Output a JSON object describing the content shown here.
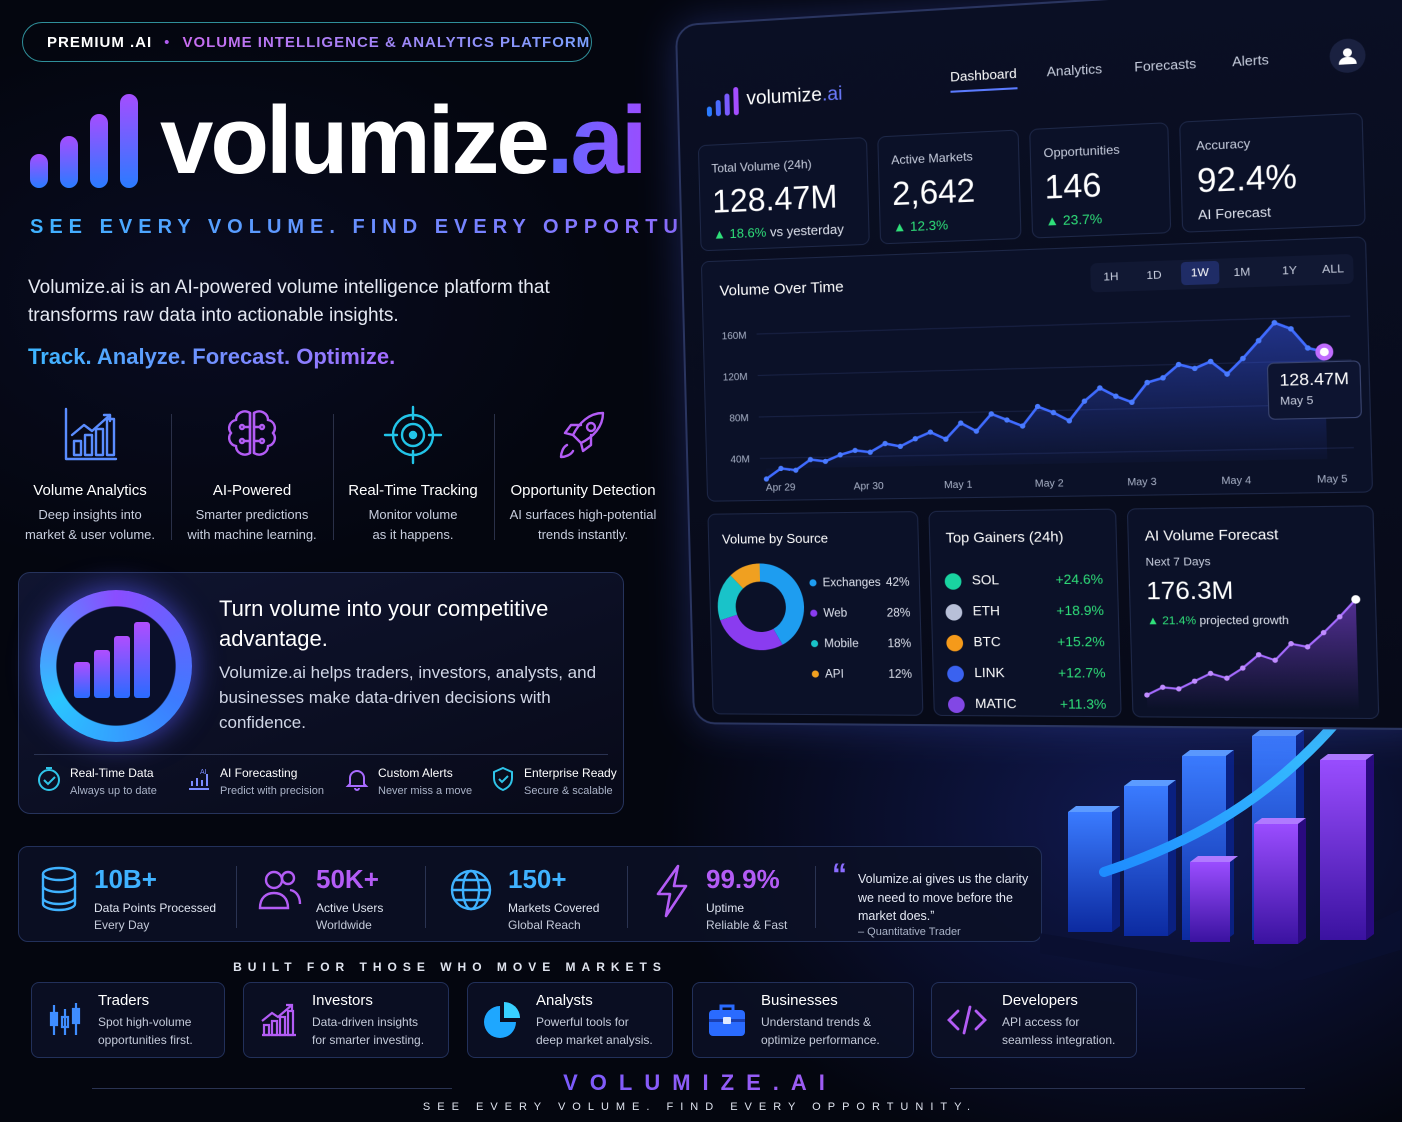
{
  "badge": {
    "left": "PREMIUM .AI",
    "sep": "•",
    "right": "VOLUME INTELLIGENCE & ANALYTICS PLATFORM"
  },
  "logo": {
    "name": "volumize",
    "suffix": ".ai"
  },
  "tagline": "SEE EVERY VOLUME. FIND EVERY OPPORTUNITY.",
  "intro": "Volumize.ai is an AI-powered volume intelligence platform that transforms raw data into actionable insights.",
  "motto": "Track. Analyze. Forecast. Optimize.",
  "features": [
    {
      "icon": "bar-chart-icon",
      "title": "Volume Analytics",
      "desc1": "Deep insights into",
      "desc2": "market & user volume."
    },
    {
      "icon": "brain-icon",
      "title": "AI-Powered",
      "desc1": "Smarter predictions",
      "desc2": "with machine learning."
    },
    {
      "icon": "target-icon",
      "title": "Real-Time Tracking",
      "desc1": "Monitor volume",
      "desc2": "as it happens."
    },
    {
      "icon": "rocket-icon",
      "title": "Opportunity Detection",
      "desc1": "AI surfaces high-potential",
      "desc2": "trends instantly."
    }
  ],
  "advantage": {
    "title": "Turn volume into your competitive advantage.",
    "body": "Volumize.ai helps traders, investors, analysts, and businesses make data-driven decisions with confidence.",
    "items": [
      {
        "icon": "check-clock-icon",
        "title": "Real-Time Data",
        "desc": "Always up to date"
      },
      {
        "icon": "ai-chart-icon",
        "title": "AI Forecasting",
        "desc": "Predict with precision"
      },
      {
        "icon": "bell-icon",
        "title": "Custom Alerts",
        "desc": "Never miss a move"
      },
      {
        "icon": "shield-check-icon",
        "title": "Enterprise Ready",
        "desc": "Secure & scalable"
      }
    ]
  },
  "stats": [
    {
      "icon": "database-icon",
      "value": "10B+",
      "l1": "Data Points Processed",
      "l2": "Every Day",
      "color": "#3fb2ff"
    },
    {
      "icon": "users-icon",
      "value": "50K+",
      "l1": "Active Users",
      "l2": "Worldwide",
      "color": "#b35cf5"
    },
    {
      "icon": "globe-icon",
      "value": "150+",
      "l1": "Markets Covered",
      "l2": "Global Reach",
      "color": "#3fb2ff"
    },
    {
      "icon": "lightning-icon",
      "value": "99.9%",
      "l1": "Uptime",
      "l2": "Reliable & Fast",
      "color": "#b35cf5"
    }
  ],
  "quote": {
    "mark": "“",
    "text": "Volumize.ai gives us the clarity we need to move before the market does.ˮ",
    "author": "– Quantitative Trader"
  },
  "built_for": "BUILT FOR THOSE WHO MOVE MARKETS",
  "audiences": [
    {
      "icon": "candlestick-icon",
      "title": "Traders",
      "d1": "Spot high-volume",
      "d2": "opportunities first."
    },
    {
      "icon": "growth-chart-icon",
      "title": "Investors",
      "d1": "Data-driven insights",
      "d2": "for smarter investing."
    },
    {
      "icon": "pie-chart-icon",
      "title": "Analysts",
      "d1": "Powerful tools for",
      "d2": "deep market analysis."
    },
    {
      "icon": "briefcase-icon",
      "title": "Businesses",
      "d1": "Understand trends &",
      "d2": "optimize performance."
    },
    {
      "icon": "code-icon",
      "title": "Developers",
      "d1": "API access for",
      "d2": "seamless integration."
    }
  ],
  "footer": {
    "brand": "VOLUMIZE.AI",
    "tagline": "SEE EVERY VOLUME. FIND EVERY OPPORTUNITY."
  },
  "dashboard": {
    "brand": {
      "name": "volumize",
      "suffix": ".ai"
    },
    "nav": [
      "Dashboard",
      "Analytics",
      "Forecasts",
      "Alerts"
    ],
    "kpis": [
      {
        "label": "Total Volume (24h)",
        "value": "128.47M",
        "change": "▲ 18.6%",
        "note": "vs yesterday"
      },
      {
        "label": "Active Markets",
        "value": "2,642",
        "change": "▲ 12.3%",
        "note": ""
      },
      {
        "label": "Opportunities",
        "value": "146",
        "change": "▲ 23.7%",
        "note": ""
      },
      {
        "label": "Accuracy",
        "value": "92.4%",
        "change": "",
        "note": "AI Forecast"
      }
    ],
    "chart_title": "Volume Over Time",
    "timeframes": [
      "1H",
      "1D",
      "1W",
      "1M",
      "1Y",
      "ALL"
    ],
    "active_timeframe": "1W",
    "tooltip": {
      "value": "128.47M",
      "date": "May 5"
    },
    "source_title": "Volume by Source",
    "sources": [
      {
        "name": "Exchanges",
        "pct": "42%",
        "color": "#1e9df0"
      },
      {
        "name": "Web",
        "pct": "28%",
        "color": "#8a3cf0"
      },
      {
        "name": "Mobile",
        "pct": "18%",
        "color": "#19c3c9"
      },
      {
        "name": "API",
        "pct": "12%",
        "color": "#f0a020"
      }
    ],
    "gainers_title": "Top Gainers (24h)",
    "gainers": [
      {
        "sym": "SOL",
        "pct": "+24.6%",
        "icon": "sol-icon",
        "color": "#19d3a0"
      },
      {
        "sym": "ETH",
        "pct": "+18.9%",
        "icon": "eth-icon",
        "color": "#b8c0d8"
      },
      {
        "sym": "BTC",
        "pct": "+15.2%",
        "icon": "btc-icon",
        "color": "#f59a1a"
      },
      {
        "sym": "LINK",
        "pct": "+12.7%",
        "icon": "link-icon",
        "color": "#3a62f0"
      },
      {
        "sym": "MATIC",
        "pct": "+11.3%",
        "icon": "matic-icon",
        "color": "#8247e5"
      }
    ],
    "forecast": {
      "title": "AI Volume Forecast",
      "sub": "Next 7 Days",
      "value": "176.3M",
      "change": "▲ 21.4%",
      "note": "projected growth"
    }
  },
  "chart_data": [
    {
      "type": "line",
      "title": "Volume Over Time",
      "x_ticks": [
        "Apr 29",
        "Apr 30",
        "May 1",
        "May 2",
        "May 3",
        "May 4",
        "May 5"
      ],
      "y_ticks": [
        "40M",
        "80M",
        "120M",
        "160M"
      ],
      "ylim": [
        30,
        170
      ],
      "series": [
        {
          "values": [
            20,
            30,
            28,
            38,
            36,
            42,
            46,
            44,
            52,
            49,
            56,
            62,
            55,
            70,
            62,
            78,
            72,
            66,
            84,
            78,
            70,
            88,
            100,
            92,
            86,
            104,
            108,
            120,
            116,
            122,
            110,
            124,
            140,
            156,
            150,
            132,
            128
          ]
        }
      ]
    },
    {
      "type": "pie",
      "title": "Volume by Source",
      "categories": [
        "Exchanges",
        "Web",
        "Mobile",
        "API"
      ],
      "values": [
        42,
        28,
        18,
        12
      ]
    },
    {
      "type": "line",
      "title": "AI Volume Forecast",
      "series": [
        {
          "values": [
            110,
            120,
            118,
            128,
            138,
            132,
            145,
            162,
            155,
            176,
            172,
            190,
            210,
            232
          ]
        }
      ]
    }
  ]
}
